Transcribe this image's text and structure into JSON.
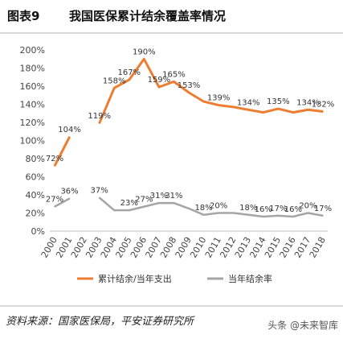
{
  "figure": {
    "label": "图表9",
    "title": "我国医保累计结余覆盖率情况"
  },
  "source": "资料来源：国家医保局，平安证券研究所",
  "watermark": "头条 @未来智库",
  "chart_data": {
    "type": "line",
    "categories": [
      "2000",
      "2001",
      "2002",
      "2003",
      "2004",
      "2005",
      "2006",
      "2007",
      "2008",
      "2009",
      "2010",
      "2011",
      "2012",
      "2013",
      "2014",
      "2015",
      "2016",
      "2017",
      "2018"
    ],
    "ylim": [
      0,
      200
    ],
    "yticks": [
      0,
      20,
      40,
      60,
      80,
      100,
      120,
      140,
      160,
      180,
      200
    ],
    "ytick_labels": [
      "0%",
      "20%",
      "40%",
      "60%",
      "80%",
      "100%",
      "120%",
      "140%",
      "160%",
      "180%",
      "200%"
    ],
    "grid": false,
    "legend_position": "bottom",
    "series": [
      {
        "name": "累计结余/当年支出",
        "color": "#ed7d31",
        "values": [
          72,
          104,
          null,
          119,
          158,
          167,
          190,
          159,
          165,
          153,
          143,
          139,
          137,
          134,
          131,
          135,
          131,
          134,
          132
        ],
        "labels": [
          "72%",
          "104%",
          "",
          "119%",
          "158%",
          "167%",
          "190%",
          "159%",
          "165%",
          "153%",
          "",
          "139%",
          "",
          "134%",
          "",
          "135%",
          "",
          "134%",
          "132%"
        ]
      },
      {
        "name": "当年结余率",
        "color": "#a5a5a5",
        "values": [
          27,
          36,
          null,
          37,
          23,
          23,
          27,
          31,
          31,
          25,
          18,
          20,
          20,
          18,
          16,
          17,
          16,
          20,
          17
        ],
        "labels": [
          "27%",
          "36%",
          "",
          "37%",
          "",
          "23%",
          "27%",
          "31%",
          "31%",
          "",
          "18%",
          "20%",
          "",
          "18%",
          "16%",
          "17%",
          "16%",
          "20%",
          "17%"
        ]
      }
    ]
  }
}
